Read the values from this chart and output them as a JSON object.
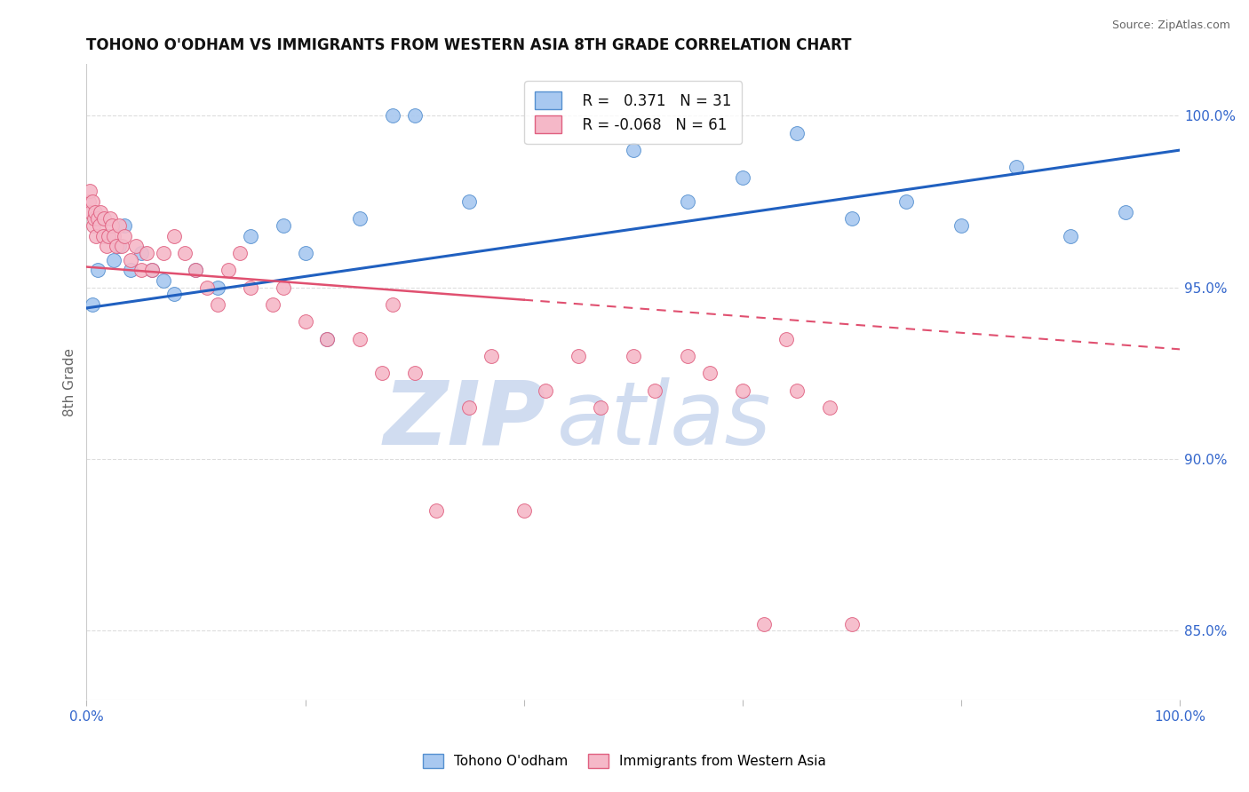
{
  "title": "TOHONO O'ODHAM VS IMMIGRANTS FROM WESTERN ASIA 8TH GRADE CORRELATION CHART",
  "source": "Source: ZipAtlas.com",
  "ylabel": "8th Grade",
  "right_yticks": [
    85.0,
    90.0,
    95.0,
    100.0
  ],
  "blue_label": "Tohono O'odham",
  "pink_label": "Immigrants from Western Asia",
  "blue_R": "0.371",
  "blue_N": "31",
  "pink_R": "-0.068",
  "pink_N": "61",
  "blue_color": "#A8C8F0",
  "pink_color": "#F5B8C8",
  "blue_edge_color": "#5590D0",
  "pink_edge_color": "#E06080",
  "blue_line_color": "#2060C0",
  "pink_line_color": "#E05070",
  "watermark_zip": "ZIP",
  "watermark_atlas": "atlas",
  "watermark_color": "#D0DCF0",
  "blue_scatter_x": [
    0.5,
    1.0,
    2.0,
    2.5,
    3.0,
    3.5,
    4.0,
    5.0,
    6.0,
    7.0,
    8.0,
    10.0,
    12.0,
    15.0,
    18.0,
    20.0,
    22.0,
    25.0,
    28.0,
    30.0,
    35.0,
    50.0,
    55.0,
    60.0,
    65.0,
    70.0,
    75.0,
    80.0,
    85.0,
    90.0,
    95.0
  ],
  "blue_scatter_y": [
    94.5,
    95.5,
    96.5,
    95.8,
    96.2,
    96.8,
    95.5,
    96.0,
    95.5,
    95.2,
    94.8,
    95.5,
    95.0,
    96.5,
    96.8,
    96.0,
    93.5,
    97.0,
    100.0,
    100.0,
    97.5,
    99.0,
    97.5,
    98.2,
    99.5,
    97.0,
    97.5,
    96.8,
    98.5,
    96.5,
    97.2
  ],
  "pink_scatter_x": [
    0.2,
    0.3,
    0.4,
    0.5,
    0.6,
    0.7,
    0.8,
    0.9,
    1.0,
    1.2,
    1.3,
    1.5,
    1.6,
    1.8,
    2.0,
    2.2,
    2.3,
    2.5,
    2.7,
    3.0,
    3.2,
    3.5,
    4.0,
    4.5,
    5.0,
    5.5,
    6.0,
    7.0,
    8.0,
    9.0,
    10.0,
    11.0,
    12.0,
    13.0,
    14.0,
    15.0,
    17.0,
    18.0,
    20.0,
    22.0,
    25.0,
    27.0,
    28.0,
    30.0,
    32.0,
    35.0,
    37.0,
    40.0,
    42.0,
    45.0,
    47.0,
    50.0,
    52.0,
    55.0,
    57.0,
    60.0,
    62.0,
    64.0,
    65.0,
    68.0,
    70.0
  ],
  "pink_scatter_y": [
    97.5,
    97.8,
    97.2,
    97.5,
    96.8,
    97.0,
    97.2,
    96.5,
    97.0,
    96.8,
    97.2,
    96.5,
    97.0,
    96.2,
    96.5,
    97.0,
    96.8,
    96.5,
    96.2,
    96.8,
    96.2,
    96.5,
    95.8,
    96.2,
    95.5,
    96.0,
    95.5,
    96.0,
    96.5,
    96.0,
    95.5,
    95.0,
    94.5,
    95.5,
    96.0,
    95.0,
    94.5,
    95.0,
    94.0,
    93.5,
    93.5,
    92.5,
    94.5,
    92.5,
    88.5,
    91.5,
    93.0,
    88.5,
    92.0,
    93.0,
    91.5,
    93.0,
    92.0,
    93.0,
    92.5,
    92.0,
    85.2,
    93.5,
    92.0,
    91.5,
    85.2
  ],
  "xlim": [
    0,
    100
  ],
  "ylim": [
    83,
    101.5
  ],
  "pink_solid_end": 40,
  "grid_color": "#DDDDDD",
  "bg_color": "#FFFFFF",
  "blue_trendline_x": [
    0,
    100
  ],
  "blue_trendline_y": [
    94.4,
    99.0
  ],
  "pink_trendline_x": [
    0,
    100
  ],
  "pink_trendline_y": [
    95.6,
    93.2
  ],
  "pink_solid_split_x": 40,
  "pink_solid_split_y": 94.64
}
